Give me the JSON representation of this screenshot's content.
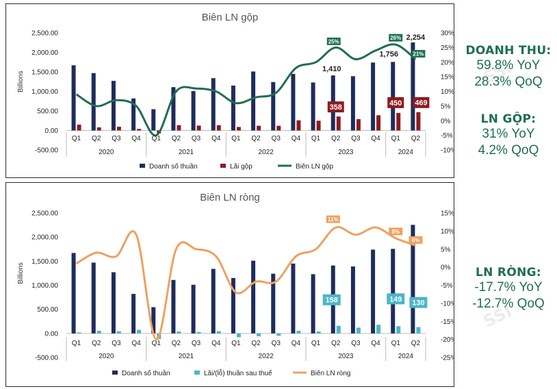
{
  "charts": {
    "gross": {
      "title": "Biên LN gộp",
      "unit_label": "Billions",
      "left_ticks": [
        "2,500.00",
        "2,000.00",
        "1,500.00",
        "1,000.00",
        "500.00",
        "0.00",
        "-500.00"
      ],
      "right_ticks": [
        "30%",
        "25%",
        "20%",
        "15%",
        "10%",
        "5%",
        "0%",
        "-5%",
        "-10%"
      ],
      "legend": [
        "Doanh số thuần",
        "Lãi gộp",
        "Biên LN gộp"
      ],
      "value_labels": {
        "rev_2023q2": "1,410",
        "rev_2024q1": "1,756",
        "rev_2024q2": "2,254",
        "gp_2023q2": "358",
        "gp_2024q1": "450",
        "gp_2024q2": "469",
        "m_2023q2": "25%",
        "m_2024q1": "26%",
        "m_2024q2": "21%"
      }
    },
    "net": {
      "title": "Biên LN ròng",
      "unit_label": "Billions",
      "left_ticks": [
        "2,500.00",
        "2,000.00",
        "1,500.00",
        "1,000.00",
        "500.00",
        "0.00",
        "-500.00"
      ],
      "right_ticks": [
        "15%",
        "10%",
        "5%",
        "0%",
        "-5%",
        "-10%",
        "-15%",
        "-20%",
        "-25%"
      ],
      "legend": [
        "Doanh số thuần",
        "Lãi/(lỗ) thuần sau thuế",
        "Biên LN ròng"
      ],
      "value_labels": {
        "np_2023q2": "158",
        "np_2024q1": "149",
        "np_2024q2": "130",
        "m_2023q2": "11%",
        "m_2024q1": "8%",
        "m_2024q2": "6%"
      }
    }
  },
  "chart_data": [
    {
      "type": "bar+line",
      "title": "Biên LN gộp",
      "ylabel": "Billions",
      "ylim": [
        -500,
        2500
      ],
      "y2lim": [
        -10,
        30
      ],
      "quarters": [
        "Q1",
        "Q2",
        "Q3",
        "Q4",
        "Q1",
        "Q2",
        "Q3",
        "Q4",
        "Q1",
        "Q2",
        "Q3",
        "Q4",
        "Q1",
        "Q2",
        "Q3",
        "Q4",
        "Q1",
        "Q2"
      ],
      "years": [
        "2020",
        "2021",
        "2022",
        "2023",
        "2024"
      ],
      "series": [
        {
          "name": "Doanh số thuần",
          "axis": "left",
          "kind": "bar",
          "values": [
            1670,
            1470,
            1270,
            820,
            545,
            1110,
            1010,
            1340,
            1150,
            1510,
            1240,
            1450,
            1230,
            1410,
            1390,
            1740,
            1756,
            2254
          ]
        },
        {
          "name": "Lãi gộp",
          "axis": "left",
          "kind": "bar",
          "values": [
            150,
            80,
            95,
            40,
            -75,
            135,
            125,
            135,
            90,
            120,
            120,
            260,
            250,
            358,
            290,
            390,
            450,
            469
          ]
        },
        {
          "name": "Biên LN gộp",
          "axis": "right",
          "kind": "line",
          "unit": "%",
          "values": [
            9,
            5,
            7,
            5,
            -5,
            10,
            11,
            10,
            6,
            8,
            9.5,
            18,
            20,
            25,
            21,
            24,
            26,
            21
          ]
        }
      ]
    },
    {
      "type": "bar+line",
      "title": "Biên LN ròng",
      "ylabel": "Billions",
      "ylim": [
        -500,
        2500
      ],
      "y2lim": [
        -25,
        15
      ],
      "quarters": [
        "Q1",
        "Q2",
        "Q3",
        "Q4",
        "Q1",
        "Q2",
        "Q3",
        "Q4",
        "Q1",
        "Q2",
        "Q3",
        "Q4",
        "Q1",
        "Q2",
        "Q3",
        "Q4",
        "Q1",
        "Q2"
      ],
      "years": [
        "2020",
        "2021",
        "2022",
        "2023",
        "2024"
      ],
      "series": [
        {
          "name": "Doanh số thuần",
          "axis": "left",
          "kind": "bar",
          "values": [
            1670,
            1470,
            1270,
            820,
            545,
            1110,
            1010,
            1340,
            1150,
            1510,
            1240,
            1450,
            1230,
            1410,
            1390,
            1740,
            1756,
            2254
          ]
        },
        {
          "name": "Lãi/(lỗ) thuần sau thuế",
          "axis": "left",
          "kind": "bar",
          "values": [
            20,
            55,
            45,
            75,
            -120,
            40,
            30,
            45,
            -80,
            -60,
            -50,
            55,
            40,
            158,
            120,
            180,
            149,
            130
          ]
        },
        {
          "name": "Biên LN ròng",
          "axis": "right",
          "kind": "line",
          "unit": "%",
          "values": [
            1,
            4,
            3,
            9,
            -20,
            5,
            5,
            3,
            -7,
            -4,
            -4,
            3,
            5,
            11,
            9,
            11,
            8,
            6
          ]
        }
      ]
    }
  ],
  "summary": {
    "revenue": {
      "heading": "DOANH THU:",
      "yoy": "59.8% YoY",
      "qoq": "28.3% QoQ"
    },
    "gross": {
      "heading": "LN GỘP:",
      "yoy": "31% YoY",
      "qoq": "4.2% QoQ"
    },
    "net": {
      "heading": "LN RÒNG:",
      "yoy": "-17.7% YoY",
      "qoq": "-12.7% QoQ"
    }
  },
  "watermark": "SSI",
  "colors": {
    "revenue_bar": "#1f2d5c",
    "gross_bar": "#8e1b20",
    "gross_line": "#1f6e4f",
    "net_bar": "#4cb5c9",
    "net_line": "#f0a060",
    "summary_text": "#1f6e4f"
  }
}
